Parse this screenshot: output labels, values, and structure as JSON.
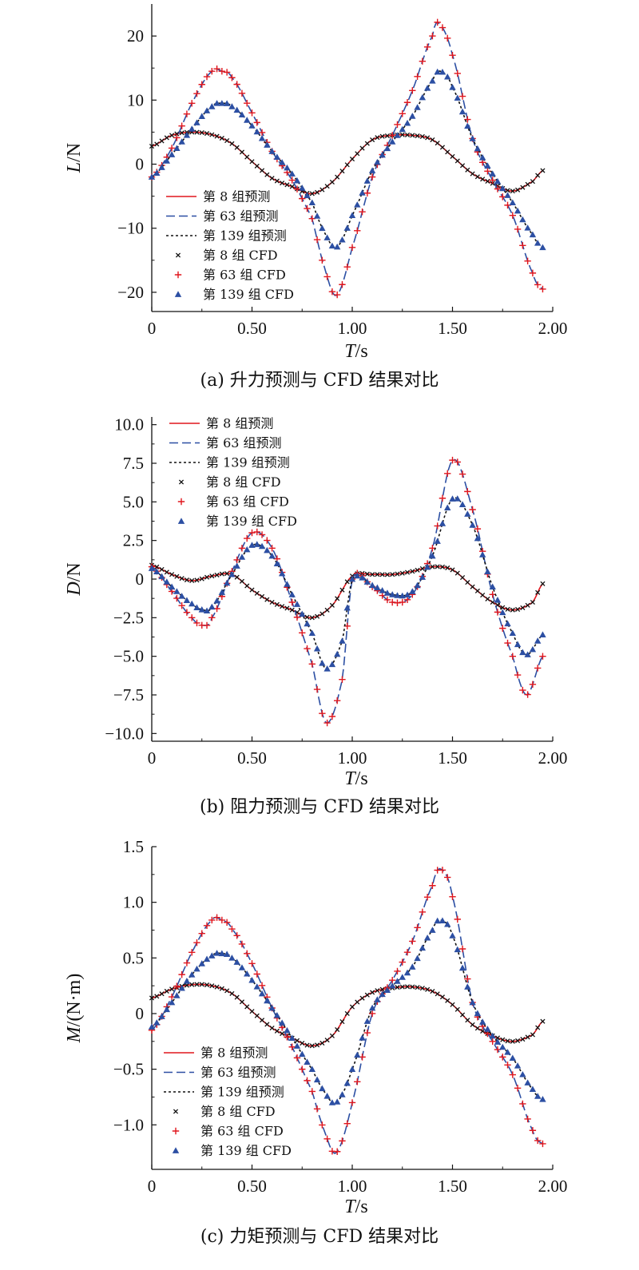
{
  "colors": {
    "red": "#e0161d",
    "blue": "#2c4fa3",
    "black": "#111111"
  },
  "chart_data": [
    {
      "type": "line",
      "caption": "(a) 升力预测与 CFD 结果对比",
      "xlabel_italic": "T",
      "xlabel_unit": "/s",
      "ylabel_italic": "L",
      "ylabel_unit": "/N",
      "xlim": [
        0,
        2.0
      ],
      "ylim": [
        -23,
        25
      ],
      "xticks": [
        0,
        0.5,
        1.0,
        1.5,
        2.0
      ],
      "xtick_labels": [
        "0",
        "0.50",
        "1.00",
        "1.50",
        "2.00"
      ],
      "yticks": [
        -20,
        -10,
        0,
        10,
        20
      ],
      "ytick_labels": [
        "−20",
        "−10",
        "0",
        "10",
        "20"
      ],
      "legend_position": "lower-left",
      "legend": [
        "第 8 组预测",
        "第 63 组预测",
        "第 139 组预测",
        "第 8 组 CFD",
        "第 63 组 CFD",
        "第 139 组 CFD"
      ],
      "series": [
        {
          "name": "第 8 组",
          "style": "red",
          "x": [
            0,
            0.1,
            0.2,
            0.3,
            0.4,
            0.5,
            0.6,
            0.7,
            0.8,
            0.9,
            1.0,
            1.1,
            1.2,
            1.3,
            1.4,
            1.5,
            1.6,
            1.7,
            1.8,
            1.9,
            1.95
          ],
          "y": [
            2.8,
            4.5,
            5.0,
            4.6,
            3.2,
            0.4,
            -2.2,
            -3.5,
            -4.6,
            -2.8,
            0.8,
            3.8,
            4.5,
            4.5,
            3.8,
            1.2,
            -1.5,
            -3.0,
            -4.2,
            -2.7,
            -1.0
          ]
        },
        {
          "name": "第 63 组",
          "style": "blue",
          "x": [
            0,
            0.1,
            0.2,
            0.3,
            0.35,
            0.4,
            0.5,
            0.6,
            0.7,
            0.8,
            0.85,
            0.92,
            1.0,
            1.1,
            1.2,
            1.3,
            1.4,
            1.43,
            1.5,
            1.6,
            1.7,
            1.8,
            1.9,
            1.95
          ],
          "y": [
            -2.0,
            2.5,
            9.5,
            14.5,
            14.5,
            13.5,
            8.0,
            2.0,
            -2.5,
            -8.5,
            -15.0,
            -20.5,
            -13.0,
            -2.0,
            4.5,
            11.5,
            20.0,
            22.0,
            17.0,
            4.0,
            -2.5,
            -8.0,
            -17.0,
            -19.5
          ]
        },
        {
          "name": "第 139 组",
          "style": "black",
          "x": [
            0,
            0.1,
            0.2,
            0.3,
            0.35,
            0.4,
            0.5,
            0.6,
            0.7,
            0.8,
            0.85,
            0.92,
            1.0,
            1.1,
            1.2,
            1.3,
            1.4,
            1.44,
            1.5,
            1.6,
            1.7,
            1.8,
            1.9,
            1.95
          ],
          "y": [
            -2.0,
            1.5,
            5.5,
            9.0,
            9.5,
            9.0,
            6.0,
            2.0,
            -1.5,
            -6.0,
            -10.0,
            -13.0,
            -8.0,
            -1.0,
            3.5,
            7.5,
            13.0,
            14.5,
            12.0,
            4.0,
            -1.5,
            -6.0,
            -11.0,
            -13.0
          ]
        }
      ]
    },
    {
      "type": "line",
      "caption": "(b) 阻力预测与 CFD 结果对比",
      "xlabel_italic": "T",
      "xlabel_unit": "/s",
      "ylabel_italic": "D",
      "ylabel_unit": "/N",
      "xlim": [
        0,
        2.0
      ],
      "ylim": [
        -10.5,
        10.5
      ],
      "xticks": [
        0,
        0.5,
        1.0,
        1.5,
        2.0
      ],
      "xtick_labels": [
        "0",
        "0.50",
        "1.00",
        "1.50",
        "2.00"
      ],
      "yticks": [
        -10,
        -7.5,
        -5,
        -2.5,
        0,
        2.5,
        5,
        7.5,
        10
      ],
      "ytick_labels": [
        "−10.0",
        "−7.5",
        "−5.0",
        "−2.5",
        "0",
        "2.5",
        "5.0",
        "7.5",
        "10.0"
      ],
      "legend_position": "top-left",
      "legend": [
        "第 8 组预测",
        "第 63 组预测",
        "第 139 组预测",
        "第 8 组 CFD",
        "第 63 组 CFD",
        "第 139 组 CFD"
      ],
      "series": [
        {
          "name": "第 8 组",
          "style": "red",
          "x": [
            0,
            0.1,
            0.2,
            0.3,
            0.4,
            0.5,
            0.6,
            0.7,
            0.8,
            0.9,
            1.0,
            1.1,
            1.2,
            1.3,
            1.4,
            1.5,
            1.6,
            1.7,
            1.8,
            1.9,
            1.95
          ],
          "y": [
            0.9,
            0.3,
            -0.1,
            0.2,
            0.3,
            -0.7,
            -1.5,
            -2.0,
            -2.5,
            -1.7,
            0.2,
            0.3,
            0.3,
            0.5,
            0.8,
            0.6,
            -0.5,
            -1.5,
            -2.0,
            -1.5,
            -0.3
          ]
        },
        {
          "name": "第 63 组",
          "style": "blue",
          "x": [
            0,
            0.1,
            0.2,
            0.26,
            0.3,
            0.4,
            0.5,
            0.6,
            0.7,
            0.8,
            0.87,
            0.95,
            1.0,
            1.1,
            1.2,
            1.3,
            1.4,
            1.5,
            1.6,
            1.7,
            1.8,
            1.87,
            1.95
          ],
          "y": [
            0.8,
            -0.8,
            -2.5,
            -3.0,
            -2.5,
            0.5,
            3.0,
            2.0,
            -1.5,
            -5.5,
            -9.3,
            -6.5,
            0.0,
            -0.5,
            -1.5,
            -1.0,
            2.0,
            7.7,
            4.5,
            -1.0,
            -5.0,
            -7.5,
            -5.0
          ]
        },
        {
          "name": "第 139 组",
          "style": "black",
          "x": [
            0,
            0.1,
            0.2,
            0.26,
            0.3,
            0.4,
            0.5,
            0.6,
            0.7,
            0.8,
            0.87,
            0.95,
            1.0,
            1.1,
            1.2,
            1.3,
            1.4,
            1.5,
            1.6,
            1.7,
            1.8,
            1.87,
            1.95
          ],
          "y": [
            0.7,
            -0.5,
            -1.6,
            -2.0,
            -1.8,
            0.3,
            2.2,
            1.5,
            -1.0,
            -3.5,
            -5.8,
            -4.0,
            0.0,
            -0.4,
            -1.0,
            -0.8,
            1.5,
            5.2,
            3.5,
            -0.5,
            -3.5,
            -4.9,
            -3.6
          ]
        }
      ]
    },
    {
      "type": "line",
      "caption": "(c) 力矩预测与 CFD 结果对比",
      "xlabel_italic": "T",
      "xlabel_unit": "/s",
      "ylabel_italic": "M",
      "ylabel_unit": "/(N·m)",
      "xlim": [
        0,
        2.0
      ],
      "ylim": [
        -1.4,
        1.5
      ],
      "xticks": [
        0,
        0.5,
        1.0,
        1.5,
        2.0
      ],
      "xtick_labels": [
        "0",
        "0.50",
        "1.00",
        "1.50",
        "2.00"
      ],
      "yticks": [
        -1.0,
        -0.5,
        0,
        0.5,
        1.0,
        1.5
      ],
      "ytick_labels": [
        "−1.0",
        "−0.5",
        "0",
        "0.5",
        "1.0",
        "1.5"
      ],
      "legend_position": "lower-left",
      "legend": [
        "第 8 组预测",
        "第 63 组预测",
        "第 139 组预测",
        "第 8 组 CFD",
        "第 63 组 CFD",
        "第 139 组 CFD"
      ],
      "series": [
        {
          "name": "第 8 组",
          "style": "red",
          "x": [
            0,
            0.1,
            0.2,
            0.3,
            0.4,
            0.5,
            0.6,
            0.7,
            0.8,
            0.9,
            1.0,
            1.1,
            1.2,
            1.3,
            1.4,
            1.5,
            1.6,
            1.7,
            1.8,
            1.9,
            1.95
          ],
          "y": [
            0.14,
            0.22,
            0.26,
            0.25,
            0.18,
            0.02,
            -0.13,
            -0.22,
            -0.29,
            -0.2,
            0.06,
            0.19,
            0.23,
            0.24,
            0.2,
            0.08,
            -0.1,
            -0.2,
            -0.25,
            -0.19,
            -0.07
          ]
        },
        {
          "name": "第 63 组",
          "style": "blue",
          "x": [
            0,
            0.1,
            0.2,
            0.3,
            0.35,
            0.4,
            0.5,
            0.6,
            0.7,
            0.8,
            0.86,
            0.92,
            1.0,
            1.1,
            1.2,
            1.3,
            1.4,
            1.44,
            1.5,
            1.6,
            1.7,
            1.8,
            1.9,
            1.95
          ],
          "y": [
            -0.15,
            0.15,
            0.55,
            0.84,
            0.84,
            0.76,
            0.45,
            0.05,
            -0.3,
            -0.7,
            -1.05,
            -1.25,
            -0.8,
            0.0,
            0.3,
            0.65,
            1.15,
            1.3,
            1.05,
            0.1,
            -0.25,
            -0.55,
            -1.05,
            -1.17
          ]
        },
        {
          "name": "第 139 组",
          "style": "black",
          "x": [
            0,
            0.1,
            0.2,
            0.3,
            0.35,
            0.4,
            0.5,
            0.6,
            0.7,
            0.8,
            0.86,
            0.92,
            1.0,
            1.1,
            1.2,
            1.3,
            1.4,
            1.44,
            1.5,
            1.6,
            1.7,
            1.8,
            1.9,
            1.95
          ],
          "y": [
            -0.12,
            0.1,
            0.35,
            0.52,
            0.54,
            0.5,
            0.3,
            0.05,
            -0.22,
            -0.5,
            -0.7,
            -0.8,
            -0.5,
            0.05,
            0.25,
            0.42,
            0.75,
            0.84,
            0.7,
            0.1,
            -0.2,
            -0.4,
            -0.68,
            -0.77
          ]
        }
      ]
    }
  ]
}
